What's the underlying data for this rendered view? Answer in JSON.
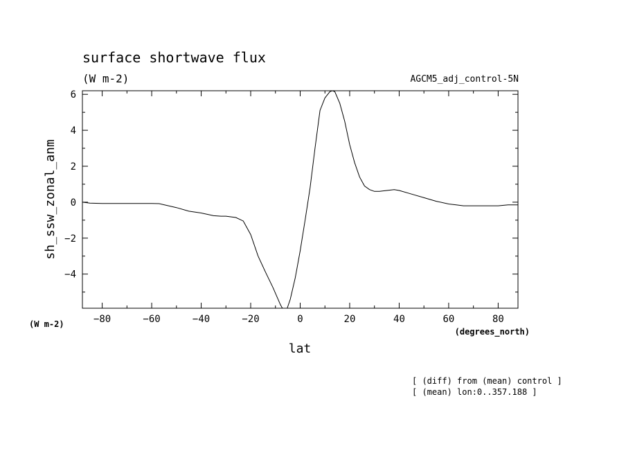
{
  "chart_data": {
    "type": "line",
    "title": "surface shortwave flux",
    "subtitle": "(W m-2)",
    "dataset_label": "AGCM5_adj_control-5N",
    "xlabel": "lat",
    "xunits": "(degrees_north)",
    "ylabel": "sh_ssw_zonal_anm",
    "yunits": "(W m-2)",
    "notes": [
      "[ (diff) from (mean) control ]",
      "[ (mean) lon:0..357.188 ]"
    ],
    "xlim": [
      -88,
      88
    ],
    "ylim": [
      -5.9,
      6.2
    ],
    "xticks": [
      -80,
      -60,
      -40,
      -20,
      0,
      20,
      40,
      60,
      80
    ],
    "yticks": [
      -4,
      -2,
      0,
      2,
      4,
      6
    ],
    "grid": false,
    "series": [
      {
        "x": [
          -88,
          -85,
          -80,
          -70,
          -60,
          -57,
          -50,
          -45,
          -40,
          -35,
          -32,
          -30,
          -26,
          -23,
          -20,
          -17,
          -14,
          -11,
          -8,
          -6,
          -4,
          -2,
          0,
          2,
          4,
          6,
          8,
          10,
          12,
          13,
          14,
          16,
          18,
          20,
          22,
          24,
          26,
          28,
          30,
          32,
          35,
          38,
          40,
          45,
          50,
          55,
          60,
          63,
          66,
          70,
          75,
          80,
          84,
          88
        ],
        "y": [
          0.0,
          -0.05,
          -0.07,
          -0.07,
          -0.07,
          -0.08,
          -0.3,
          -0.5,
          -0.6,
          -0.75,
          -0.78,
          -0.78,
          -0.85,
          -1.05,
          -1.8,
          -3.0,
          -3.9,
          -4.75,
          -5.7,
          -6.2,
          -5.4,
          -4.2,
          -2.7,
          -1.0,
          0.8,
          3.0,
          5.1,
          5.8,
          6.15,
          6.2,
          6.15,
          5.5,
          4.5,
          3.2,
          2.2,
          1.4,
          0.9,
          0.7,
          0.6,
          0.6,
          0.65,
          0.7,
          0.65,
          0.45,
          0.25,
          0.05,
          -0.1,
          -0.15,
          -0.2,
          -0.2,
          -0.2,
          -0.2,
          -0.15,
          -0.15
        ]
      }
    ]
  }
}
